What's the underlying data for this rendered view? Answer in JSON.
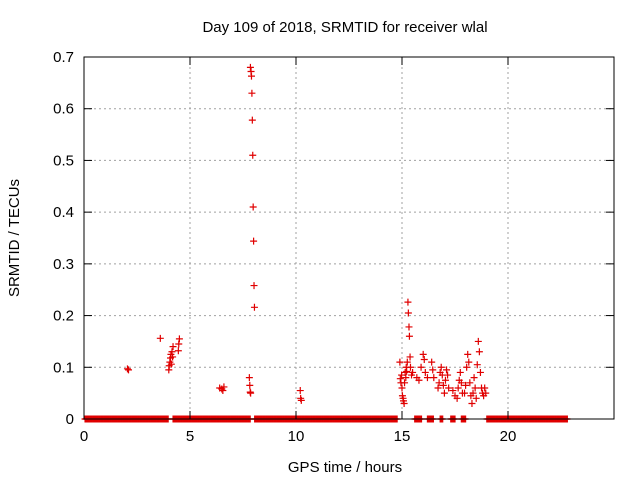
{
  "chart_data": {
    "type": "scatter",
    "title": "Day 109 of 2018, SRMTID for receiver wlal",
    "xlabel": "GPS time / hours",
    "ylabel": "SRMTID / TECUs",
    "xlim": [
      0,
      25
    ],
    "ylim": [
      0,
      0.7
    ],
    "xticks": [
      0,
      5,
      10,
      15,
      20
    ],
    "xtick_labels": [
      "0",
      "5",
      "10",
      "15",
      "20"
    ],
    "yticks": [
      0,
      0.1,
      0.2,
      0.3,
      0.4,
      0.5,
      0.6,
      0.7
    ],
    "ytick_labels": [
      "0",
      "0.1",
      "0.2",
      "0.3",
      "0.4",
      "0.5",
      "0.6",
      "0.7"
    ],
    "grid": true,
    "marker": "+",
    "color": "#e00000",
    "zero_segments": [
      [
        0.05,
        4.0
      ],
      [
        4.2,
        7.85
      ],
      [
        8.05,
        14.8
      ],
      [
        15.6,
        15.95
      ],
      [
        16.2,
        16.5
      ],
      [
        16.8,
        16.95
      ],
      [
        17.3,
        17.5
      ],
      [
        17.8,
        18.0
      ],
      [
        19.0,
        22.8
      ]
    ],
    "zero_step": 0.04,
    "series": [
      {
        "name": "SRMTID",
        "points": [
          [
            2.05,
            0.097
          ],
          [
            2.1,
            0.095
          ],
          [
            3.6,
            0.156
          ],
          [
            4.0,
            0.095
          ],
          [
            4.02,
            0.103
          ],
          [
            4.05,
            0.11
          ],
          [
            4.08,
            0.118
          ],
          [
            4.1,
            0.125
          ],
          [
            4.12,
            0.106
          ],
          [
            4.15,
            0.13
          ],
          [
            4.18,
            0.12
          ],
          [
            4.2,
            0.14
          ],
          [
            4.45,
            0.132
          ],
          [
            4.47,
            0.145
          ],
          [
            4.5,
            0.155
          ],
          [
            6.4,
            0.06
          ],
          [
            6.5,
            0.058
          ],
          [
            6.55,
            0.055
          ],
          [
            6.6,
            0.062
          ],
          [
            7.8,
            0.08
          ],
          [
            7.82,
            0.065
          ],
          [
            7.84,
            0.052
          ],
          [
            7.86,
            0.05
          ],
          [
            7.85,
            0.68
          ],
          [
            7.88,
            0.672
          ],
          [
            7.9,
            0.663
          ],
          [
            7.92,
            0.63
          ],
          [
            7.94,
            0.578
          ],
          [
            7.96,
            0.51
          ],
          [
            7.98,
            0.41
          ],
          [
            8.0,
            0.344
          ],
          [
            8.02,
            0.258
          ],
          [
            8.04,
            0.216
          ],
          [
            10.2,
            0.055
          ],
          [
            10.22,
            0.04
          ],
          [
            10.25,
            0.036
          ],
          [
            14.9,
            0.11
          ],
          [
            14.92,
            0.078
          ],
          [
            14.95,
            0.07
          ],
          [
            14.98,
            0.085
          ],
          [
            15.0,
            0.06
          ],
          [
            15.02,
            0.045
          ],
          [
            15.05,
            0.04
          ],
          [
            15.07,
            0.035
          ],
          [
            15.1,
            0.03
          ],
          [
            15.12,
            0.07
          ],
          [
            15.15,
            0.09
          ],
          [
            15.18,
            0.08
          ],
          [
            15.2,
            0.1
          ],
          [
            15.22,
            0.092
          ],
          [
            15.25,
            0.11
          ],
          [
            15.28,
            0.226
          ],
          [
            15.3,
            0.205
          ],
          [
            15.33,
            0.178
          ],
          [
            15.35,
            0.16
          ],
          [
            15.38,
            0.12
          ],
          [
            15.4,
            0.1
          ],
          [
            15.45,
            0.085
          ],
          [
            15.5,
            0.09
          ],
          [
            15.7,
            0.08
          ],
          [
            15.8,
            0.075
          ],
          [
            15.9,
            0.1
          ],
          [
            16.0,
            0.125
          ],
          [
            16.05,
            0.115
          ],
          [
            16.1,
            0.09
          ],
          [
            16.2,
            0.08
          ],
          [
            16.4,
            0.11
          ],
          [
            16.45,
            0.095
          ],
          [
            16.5,
            0.08
          ],
          [
            16.7,
            0.06
          ],
          [
            16.75,
            0.07
          ],
          [
            16.8,
            0.09
          ],
          [
            16.85,
            0.1
          ],
          [
            16.9,
            0.085
          ],
          [
            16.95,
            0.065
          ],
          [
            17.0,
            0.05
          ],
          [
            17.05,
            0.075
          ],
          [
            17.1,
            0.095
          ],
          [
            17.15,
            0.085
          ],
          [
            17.2,
            0.06
          ],
          [
            17.4,
            0.055
          ],
          [
            17.5,
            0.045
          ],
          [
            17.6,
            0.04
          ],
          [
            17.65,
            0.06
          ],
          [
            17.7,
            0.075
          ],
          [
            17.75,
            0.09
          ],
          [
            17.8,
            0.07
          ],
          [
            17.85,
            0.05
          ],
          [
            17.95,
            0.05
          ],
          [
            18.0,
            0.065
          ],
          [
            18.05,
            0.1
          ],
          [
            18.1,
            0.125
          ],
          [
            18.15,
            0.11
          ],
          [
            18.2,
            0.07
          ],
          [
            18.25,
            0.045
          ],
          [
            18.3,
            0.03
          ],
          [
            18.35,
            0.05
          ],
          [
            18.4,
            0.08
          ],
          [
            18.45,
            0.06
          ],
          [
            18.5,
            0.04
          ],
          [
            18.55,
            0.105
          ],
          [
            18.6,
            0.15
          ],
          [
            18.65,
            0.13
          ],
          [
            18.7,
            0.09
          ],
          [
            18.75,
            0.06
          ],
          [
            18.8,
            0.05
          ],
          [
            18.85,
            0.045
          ],
          [
            18.9,
            0.06
          ],
          [
            18.95,
            0.05
          ]
        ]
      }
    ]
  }
}
